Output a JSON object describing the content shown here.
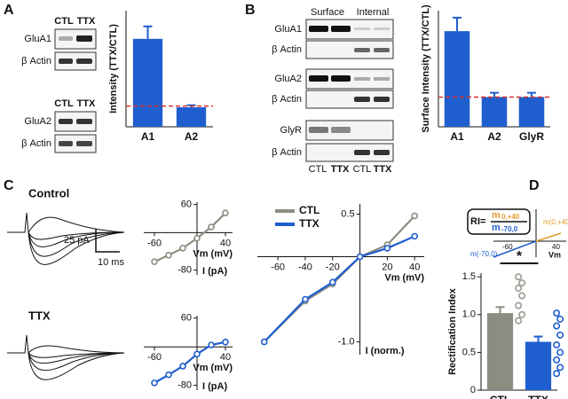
{
  "panel_letters": [
    "A",
    "B",
    "C",
    "D"
  ],
  "blots": {
    "a_rows": [
      "GluA1",
      "β Actin",
      "GluA2",
      "β Actin"
    ],
    "a_cols": [
      "CTL",
      "TTX",
      "CTL",
      "TTX"
    ],
    "b_groups": [
      "Surface",
      "Internal"
    ],
    "b_rows": [
      "GluA1",
      "β Actin",
      "GluA2",
      "β Actin",
      "GlyR",
      "β Actin"
    ],
    "b_cols": [
      "CTL",
      "TTX",
      "CTL",
      "TTX"
    ]
  },
  "traces": {
    "conditions": [
      "Control",
      "TTX"
    ],
    "scale_y": "25 pA",
    "scale_x": "10 ms"
  },
  "inset": {
    "lhs": "RI=",
    "m": "m",
    "sub_pos": "0,+40",
    "sub_neg": "-70,0",
    "line_pos": "m(0,+40)",
    "line_neg": "m(-70,0)",
    "x_labels": [
      "-60",
      "40"
    ],
    "x_axis": "Vm"
  },
  "chart_data": [
    {
      "type": "bar",
      "categories": [
        "A1",
        "A2"
      ],
      "values": [
        2.62,
        0.97
      ],
      "errors": [
        0.3,
        0.05
      ],
      "colors": [
        "#1f5ecf",
        "#1f5ecf"
      ],
      "ylabel": "Intensity (TTX/CTL)",
      "ylim": [
        0.5,
        3.3
      ],
      "reference": 1,
      "reference_color": "#d9302a"
    },
    {
      "type": "bar",
      "categories": [
        "A1",
        "A2",
        "GlyR"
      ],
      "values": [
        2.22,
        1.0,
        1.0
      ],
      "errors": [
        0.25,
        0.08,
        0.08
      ],
      "colors": [
        "#1f5ecf",
        "#1f5ecf",
        "#1f5ecf"
      ],
      "ylabel": "Surface Intensity (TTX/CTL)",
      "ylim": [
        0.45,
        2.6
      ],
      "reference": 1,
      "reference_color": "#d9302a"
    },
    {
      "type": "line",
      "x": [
        -60,
        -40,
        -20,
        0,
        20,
        40
      ],
      "series": [
        {
          "color": "#8c8c80",
          "values": [
            -62,
            -48,
            -33,
            -12,
            12,
            42
          ]
        }
      ],
      "xlabel": "Vm (mV)",
      "ylabel": "I (pA)",
      "xlim": [
        -75,
        50
      ],
      "ylim": [
        -90,
        65
      ],
      "xticks": [
        -60,
        40
      ],
      "yticks": [
        60,
        -80
      ]
    },
    {
      "type": "line",
      "x": [
        -60,
        -40,
        -20,
        0,
        20,
        40
      ],
      "series": [
        {
          "color": "#1f5ecf",
          "values": [
            -75,
            -58,
            -40,
            -15,
            4,
            10
          ]
        }
      ],
      "xlabel": "Vm (mV)",
      "ylabel": "I (pA)",
      "xlim": [
        -75,
        50
      ],
      "ylim": [
        -90,
        65
      ],
      "xticks": [
        -60,
        40
      ],
      "yticks": [
        60,
        -80
      ]
    },
    {
      "type": "line",
      "x": [
        -70,
        -40,
        -20,
        0,
        20,
        40
      ],
      "series": [
        {
          "name": "CTL",
          "color": "#8c8c80",
          "values": [
            -1,
            -0.52,
            -0.32,
            0,
            0.14,
            0.48
          ]
        },
        {
          "name": "TTX",
          "color": "#1f5ecf",
          "values": [
            -1,
            -0.5,
            -0.3,
            0,
            0.1,
            0.24
          ]
        }
      ],
      "xlabel": "Vm (mV)",
      "ylabel": "I (norm.)",
      "xlim": [
        -75,
        47
      ],
      "ylim": [
        -1.15,
        0.62
      ],
      "xticks": [
        -60,
        -40,
        -20,
        20,
        40
      ],
      "yticks": [
        0.5,
        {
          "value": -1,
          "label": "-1.0"
        }
      ],
      "legend": "top-left"
    },
    {
      "type": "bar",
      "categories": [
        "CTL",
        "TTX"
      ],
      "values": [
        1.02,
        0.64
      ],
      "errors": [
        0.08,
        0.07
      ],
      "colors": [
        "#8c8c80",
        "#1f5ecf"
      ],
      "point_colors": [
        "#9a9a90",
        "#1f5ecf"
      ],
      "points": [
        [
          1.5,
          1.42,
          1.35,
          1.25,
          1.12,
          1.0,
          0.92
        ],
        [
          1.02,
          0.94,
          0.85,
          0.73,
          0.6,
          0.5,
          0.4,
          0.3,
          0.22
        ]
      ],
      "ylabel": "Rectification Index",
      "ylim": [
        0,
        1.55
      ],
      "yticks": [
        0,
        0.5,
        {
          "value": 1,
          "label": "1.0"
        },
        1.5
      ],
      "annotation": "*"
    }
  ]
}
